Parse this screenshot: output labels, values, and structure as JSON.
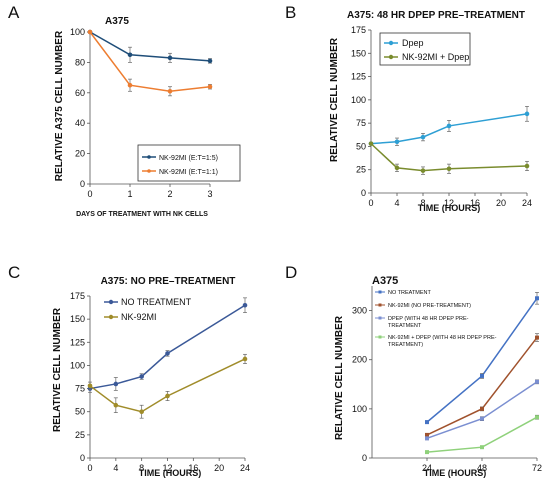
{
  "chart_data": [
    {
      "panel": "A",
      "type": "line",
      "title": "A375",
      "xlabel": "DAYS OF TREATMENT WITH NK CELLS",
      "ylabel": "RELATIVE A375 CELL NUMBER",
      "x": [
        0,
        1,
        2,
        3
      ],
      "xticks": [
        0,
        1,
        2,
        3
      ],
      "xlim": [
        0,
        3
      ],
      "ylim": [
        0,
        100
      ],
      "yticks": [
        0,
        20,
        40,
        60,
        80,
        100
      ],
      "grid": false,
      "legend_position": "bottom-right",
      "series": [
        {
          "name": "NK-92MI (E:T=1:5)",
          "color": "#1f4e79",
          "values": [
            100,
            85,
            83,
            81
          ],
          "errors": [
            0,
            5,
            3,
            1.5
          ]
        },
        {
          "name": "NK-92MI (E:T=1:1)",
          "color": "#ed7d31",
          "values": [
            100,
            65,
            61,
            64
          ],
          "errors": [
            0,
            4,
            3,
            1.5
          ]
        }
      ]
    },
    {
      "panel": "B",
      "type": "line",
      "title": "A375: 48 HR DPEP PRE–TREATMENT",
      "xlabel": "TIME (HOURS)",
      "ylabel": "RELATIVE CELL NUMBER",
      "x": [
        0,
        4,
        8,
        12,
        24
      ],
      "xticks": [
        0,
        4,
        8,
        12,
        16,
        20,
        24
      ],
      "xlim": [
        0,
        24
      ],
      "ylim": [
        0,
        175
      ],
      "yticks": [
        0,
        25,
        50,
        75,
        100,
        125,
        150,
        175
      ],
      "grid": false,
      "legend_position": "top-left",
      "series": [
        {
          "name": "Dpep",
          "color": "#2e9fd4",
          "values": [
            53,
            55,
            60,
            72,
            85
          ],
          "errors": [
            0,
            4,
            4,
            6,
            8
          ]
        },
        {
          "name": "NK-92MI + Dpep",
          "color": "#7a8c2e",
          "values": [
            53,
            27,
            24,
            26,
            29
          ],
          "errors": [
            0,
            4,
            4,
            5,
            5
          ]
        }
      ]
    },
    {
      "panel": "C",
      "type": "line",
      "title": "A375: NO PRE–TREATMENT",
      "xlabel": "TIME (HOURS)",
      "ylabel": "RELATIVE CELL NUMBER",
      "x": [
        0,
        4,
        8,
        12,
        24
      ],
      "xticks": [
        0,
        4,
        8,
        12,
        16,
        20,
        24
      ],
      "xlim": [
        0,
        24
      ],
      "ylim": [
        0,
        175
      ],
      "yticks": [
        0,
        25,
        50,
        75,
        100,
        125,
        150,
        175
      ],
      "grid": false,
      "legend_position": "top-left",
      "series": [
        {
          "name": "NO TREATMENT",
          "color": "#3b5998",
          "values": [
            75,
            80,
            88,
            113,
            165
          ],
          "errors": [
            4,
            7,
            3,
            3,
            8
          ]
        },
        {
          "name": "NK-92MI",
          "color": "#a08c2a",
          "values": [
            78,
            57,
            50,
            67,
            107
          ],
          "errors": [
            4,
            8,
            7,
            5,
            5
          ]
        }
      ]
    },
    {
      "panel": "D",
      "type": "line",
      "title": "A375",
      "xlabel": "TIME (HOURS)",
      "ylabel": "RELATIVE CELL NUMBER",
      "x": [
        24,
        48,
        72
      ],
      "xticks": [
        24,
        48,
        72
      ],
      "xlim": [
        0,
        72
      ],
      "ylim": [
        0,
        350
      ],
      "yticks": [
        0,
        100,
        200,
        300
      ],
      "grid": false,
      "legend_position": "top-left",
      "series": [
        {
          "name": "NO TREATMENT",
          "color": "#4472c4",
          "values": [
            73,
            167,
            325
          ],
          "errors": [
            3,
            5,
            12
          ]
        },
        {
          "name": "NK-92MI (NO PRE-TREATMENT)",
          "color": "#a0522d",
          "values": [
            47,
            100,
            245
          ],
          "errors": [
            3,
            4,
            8
          ]
        },
        {
          "name": "DPEP (WITH 48 HR DPEP PRE-TREATMENT)",
          "color": "#7b8fd1",
          "values": [
            40,
            80,
            155
          ],
          "errors": [
            3,
            4,
            4
          ]
        },
        {
          "name": "NK-92MI + DPEP (WITH 48 HR DPEP PRE-TREATMENT)",
          "color": "#8fd17b",
          "values": [
            12,
            22,
            83
          ],
          "errors": [
            2,
            2,
            4
          ]
        }
      ]
    }
  ]
}
